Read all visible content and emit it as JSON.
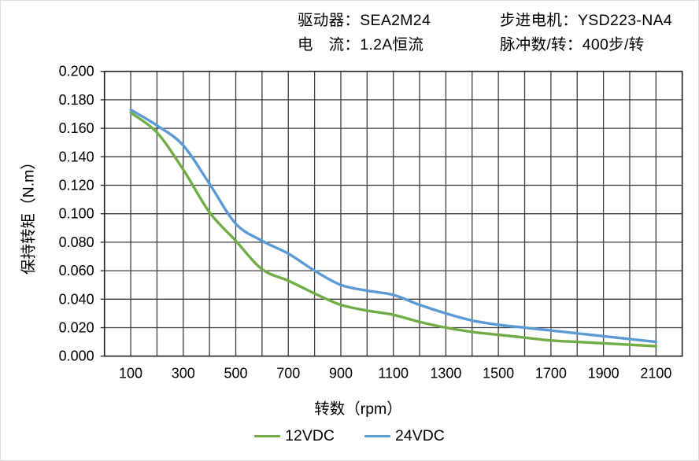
{
  "header": {
    "driver": "驱动器：SEA2M24",
    "current": "电　流：1.2A恒流",
    "motor": "步进电机：YSD223-NA4",
    "pulses_per_rev": "脉冲数/转：400步/转"
  },
  "chart_data": {
    "type": "line",
    "title": "",
    "xlabel": "转数（rpm）",
    "ylabel": "保持转矩（N.m）",
    "x": [
      100,
      200,
      300,
      400,
      500,
      600,
      700,
      800,
      900,
      1000,
      1100,
      1200,
      1300,
      1400,
      1500,
      1600,
      1700,
      1800,
      1900,
      2000,
      2100
    ],
    "series": [
      {
        "name": "12VDC",
        "color": "#70AD47",
        "values": [
          0.171,
          0.157,
          0.131,
          0.101,
          0.081,
          0.061,
          0.053,
          0.044,
          0.036,
          0.032,
          0.029,
          0.024,
          0.02,
          0.017,
          0.015,
          0.013,
          0.011,
          0.01,
          0.009,
          0.008,
          0.007
        ]
      },
      {
        "name": "24VDC",
        "color": "#5B9BD5",
        "values": [
          0.173,
          0.162,
          0.148,
          0.121,
          0.093,
          0.081,
          0.072,
          0.06,
          0.05,
          0.046,
          0.043,
          0.036,
          0.03,
          0.025,
          0.022,
          0.02,
          0.018,
          0.016,
          0.014,
          0.012,
          0.01
        ]
      }
    ],
    "xlim": [
      0,
      2200
    ],
    "ylim": [
      0,
      0.2
    ],
    "x_grid_step": 100,
    "x_label_start": 100,
    "x_label_step": 200,
    "y_tick_step": 0.02,
    "y_tick_decimals": 3,
    "grid": true,
    "legend_position": "bottom",
    "grid_color": "#3d3d3d",
    "border_color": "#1f1f1f",
    "tick_label_color": "#000000"
  }
}
